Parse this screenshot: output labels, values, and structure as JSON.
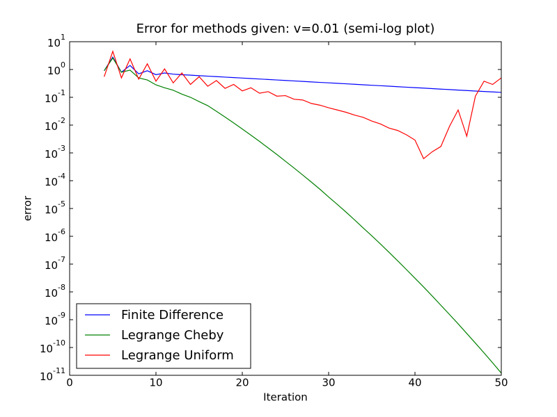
{
  "chart_data": {
    "type": "line",
    "title": "Error for methods given: v=0.01 (semi-log plot)",
    "x_label": "Iteration",
    "y_label": "error",
    "yscale": "log",
    "xlim": [
      0,
      50
    ],
    "ylim": [
      1e-11,
      10
    ],
    "xticks": [
      0,
      10,
      20,
      30,
      40,
      50
    ],
    "yticks": [
      {
        "value": 10,
        "label": "10",
        "exponent": "1"
      },
      {
        "value": 1,
        "label": "10",
        "exponent": "0"
      },
      {
        "value": 0.1,
        "label": "10",
        "exponent": "-1"
      },
      {
        "value": 0.01,
        "label": "10",
        "exponent": "-2"
      },
      {
        "value": 0.001,
        "label": "10",
        "exponent": "-3"
      },
      {
        "value": 0.0001,
        "label": "10",
        "exponent": "-4"
      },
      {
        "value": 1e-05,
        "label": "10",
        "exponent": "-5"
      },
      {
        "value": 1e-06,
        "label": "10",
        "exponent": "-6"
      },
      {
        "value": 1e-07,
        "label": "10",
        "exponent": "-7"
      },
      {
        "value": 1e-08,
        "label": "10",
        "exponent": "-8"
      },
      {
        "value": 1e-09,
        "label": "10",
        "exponent": "-9"
      },
      {
        "value": 1e-10,
        "label": "10",
        "exponent": "-10"
      },
      {
        "value": 1e-11,
        "label": "10",
        "exponent": "-11"
      }
    ],
    "legend": "lower left",
    "x": [
      4,
      5,
      6,
      7,
      8,
      9,
      10,
      11,
      12,
      13,
      14,
      15,
      16,
      17,
      18,
      19,
      20,
      21,
      22,
      23,
      24,
      25,
      26,
      27,
      28,
      29,
      30,
      31,
      32,
      33,
      34,
      35,
      36,
      37,
      38,
      39,
      40,
      41,
      42,
      43,
      44,
      45,
      46,
      47,
      48,
      49,
      50
    ],
    "series": [
      {
        "name": "Finite Difference",
        "color": "#0000ff",
        "values": [
          0.9,
          2.8,
          0.8,
          1.4,
          0.7,
          0.9,
          0.65,
          0.75,
          0.68,
          0.65,
          0.625,
          0.6,
          0.577,
          0.555,
          0.533,
          0.512,
          0.492,
          0.473,
          0.455,
          0.437,
          0.42,
          0.404,
          0.388,
          0.373,
          0.358,
          0.344,
          0.331,
          0.318,
          0.306,
          0.294,
          0.282,
          0.271,
          0.261,
          0.251,
          0.241,
          0.231,
          0.222,
          0.214,
          0.205,
          0.197,
          0.19,
          0.182,
          0.175,
          0.168,
          0.162,
          0.156,
          0.15
        ]
      },
      {
        "name": "Legrange Cheby",
        "color": "#008000",
        "values": [
          0.9,
          2.6,
          0.8,
          0.95,
          0.5,
          0.42,
          0.28,
          0.22,
          0.18,
          0.13,
          0.1,
          0.07,
          0.05,
          0.0314,
          0.0195,
          0.012,
          0.00724,
          0.00435,
          0.00258,
          0.00151,
          0.00088,
          0.0005,
          0.000285,
          0.00016,
          8.9e-05,
          4.9e-05,
          2.6e-05,
          1.41e-05,
          7.5e-06,
          3.9e-06,
          2e-06,
          1.04e-06,
          5.3e-07,
          2.65e-07,
          1.31e-07,
          6.4e-08,
          3.1e-08,
          1.5e-08,
          7.1e-09,
          3.3e-09,
          1.54e-09,
          7.1e-10,
          3.2e-10,
          1.44e-10,
          6.4e-11,
          2.8e-11,
          1.2e-11
        ]
      },
      {
        "name": "Legrange Uniform",
        "color": "#ff0000",
        "values": [
          0.55,
          4.5,
          0.5,
          2.4,
          0.45,
          1.6,
          0.38,
          1.05,
          0.33,
          0.75,
          0.29,
          0.55,
          0.25,
          0.4,
          0.21,
          0.29,
          0.17,
          0.22,
          0.14,
          0.16,
          0.11,
          0.115,
          0.085,
          0.08,
          0.06,
          0.052,
          0.042,
          0.035,
          0.029,
          0.023,
          0.019,
          0.014,
          0.011,
          0.0078,
          0.0064,
          0.0045,
          0.0029,
          0.00062,
          0.0011,
          0.0017,
          0.009,
          0.035,
          0.004,
          0.11,
          0.38,
          0.29,
          0.5
        ]
      }
    ]
  }
}
